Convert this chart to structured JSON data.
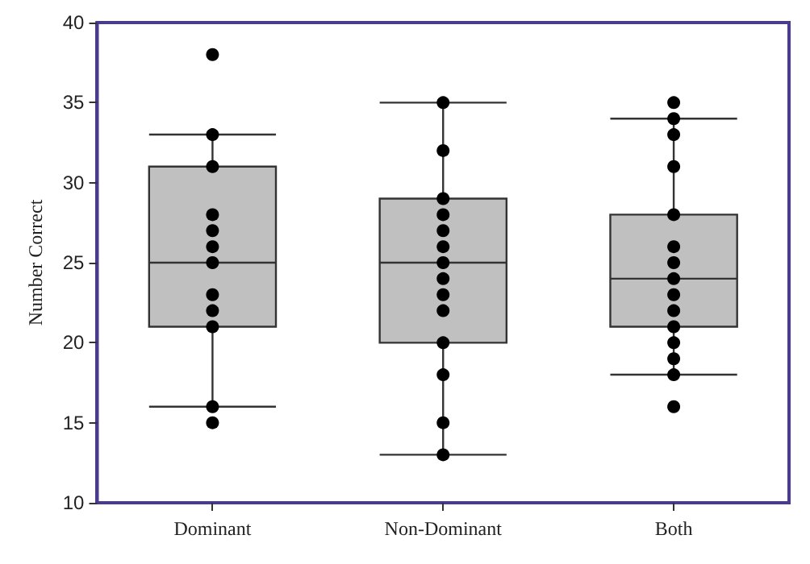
{
  "chart_data": {
    "type": "box",
    "ylabel": "Number Correct",
    "categories": [
      "Dominant",
      "Non-Dominant",
      "Both"
    ],
    "ylim": [
      10,
      40
    ],
    "yticks": [
      10,
      15,
      20,
      25,
      30,
      35,
      40
    ],
    "grid": false,
    "series": [
      {
        "type": "box",
        "color": "#c0c0c0",
        "boxes": [
          {
            "low": 16,
            "q1": 21,
            "median": 25,
            "q3": 31,
            "high": 33
          },
          {
            "low": 13,
            "q1": 20,
            "median": 25,
            "q3": 29,
            "high": 35
          },
          {
            "low": 18,
            "q1": 21,
            "median": 24,
            "q3": 28,
            "high": 34
          }
        ]
      },
      {
        "type": "scatter",
        "color": "#000000",
        "marker": "circle",
        "x": [
          "Dominant",
          "Dominant",
          "Dominant",
          "Dominant",
          "Dominant",
          "Dominant",
          "Dominant",
          "Dominant",
          "Dominant",
          "Dominant",
          "Dominant",
          "Dominant",
          "Non-Dominant",
          "Non-Dominant",
          "Non-Dominant",
          "Non-Dominant",
          "Non-Dominant",
          "Non-Dominant",
          "Non-Dominant",
          "Non-Dominant",
          "Non-Dominant",
          "Non-Dominant",
          "Non-Dominant",
          "Non-Dominant",
          "Non-Dominant",
          "Non-Dominant",
          "Both",
          "Both",
          "Both",
          "Both",
          "Both",
          "Both",
          "Both",
          "Both",
          "Both",
          "Both",
          "Both",
          "Both",
          "Both",
          "Both",
          "Both"
        ],
        "values": [
          38,
          33,
          31,
          28,
          27,
          26,
          25,
          23,
          22,
          21,
          16,
          15,
          35,
          32,
          29,
          28,
          27,
          26,
          25,
          24,
          23,
          22,
          20,
          18,
          15,
          13,
          35,
          34,
          33,
          31,
          28,
          26,
          25,
          24,
          23,
          22,
          21,
          20,
          19,
          18,
          16
        ]
      }
    ]
  }
}
